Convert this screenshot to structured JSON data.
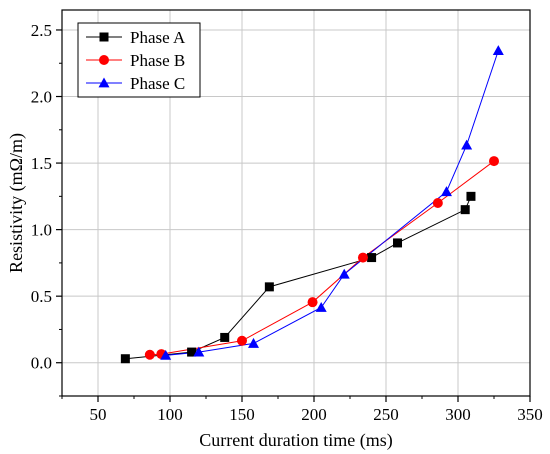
{
  "chart_data": {
    "type": "line",
    "xlabel": "Current duration time (ms)",
    "ylabel": "Resistivity (mΩ/m)",
    "xlim": [
      25,
      350
    ],
    "ylim": [
      -0.25,
      2.65
    ],
    "xticks": [
      50,
      100,
      150,
      200,
      250,
      300,
      350
    ],
    "yticks": [
      0.0,
      0.5,
      1.0,
      1.5,
      2.0,
      2.5
    ],
    "grid": true,
    "legend_position": "top-left",
    "series": [
      {
        "name": "Phase A",
        "color": "#000000",
        "marker": "square",
        "x": [
          69,
          115,
          138,
          169,
          240,
          258,
          305,
          309
        ],
        "y": [
          0.03,
          0.08,
          0.19,
          0.57,
          0.79,
          0.9,
          1.15,
          1.25
        ]
      },
      {
        "name": "Phase B",
        "color": "#ff0000",
        "marker": "circle",
        "x": [
          86,
          94,
          150,
          199,
          234,
          286,
          325
        ],
        "y": [
          0.06,
          0.065,
          0.165,
          0.455,
          0.79,
          1.2,
          1.515
        ]
      },
      {
        "name": "Phase C",
        "color": "#0000ff",
        "marker": "triangle",
        "x": [
          97,
          120,
          158,
          205,
          221,
          292,
          306,
          328
        ],
        "y": [
          0.055,
          0.08,
          0.145,
          0.415,
          0.665,
          1.285,
          1.635,
          2.345
        ]
      }
    ]
  }
}
